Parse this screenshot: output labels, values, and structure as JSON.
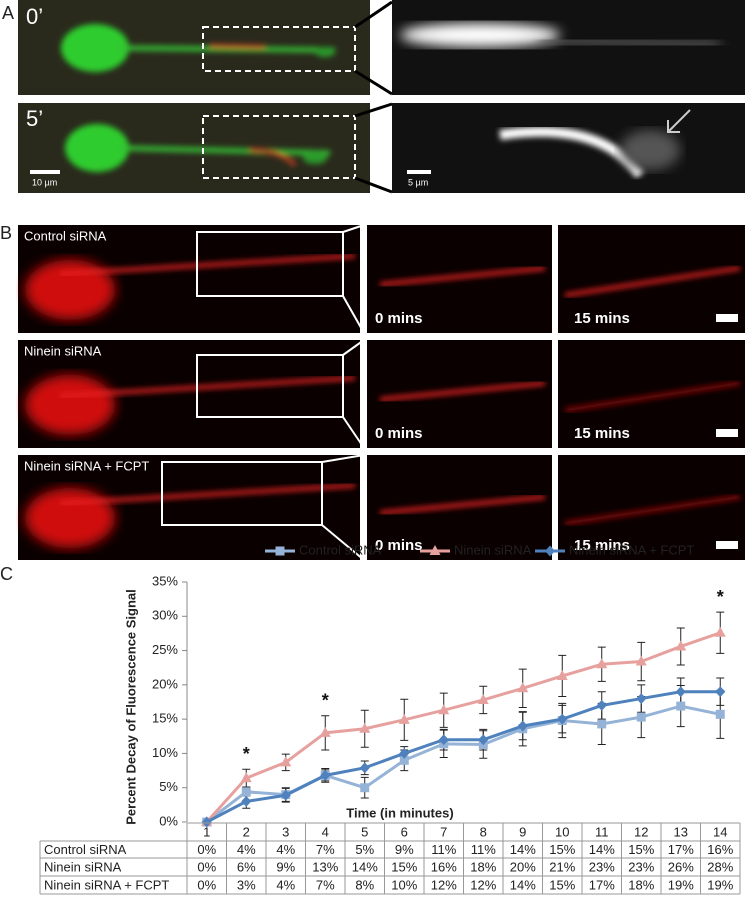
{
  "panel_labels": [
    "A",
    "B",
    "C"
  ],
  "panel_a": {
    "time_labels": [
      "0’",
      "5’"
    ],
    "scale_bars": [
      "10 µm",
      "5 µm"
    ]
  },
  "panel_b": {
    "rows": [
      "Control siRNA",
      "Ninein siRNA",
      "Ninein siRNA + FCPT"
    ],
    "time_labels": [
      "0 mins",
      "15 mins"
    ]
  },
  "chart_data": {
    "type": "line",
    "xlabel": "Time (in minutes)",
    "ylabel": "Percent Decay of Fluorescence Signal",
    "x": [
      1,
      2,
      3,
      4,
      5,
      6,
      7,
      8,
      9,
      10,
      11,
      12,
      13,
      14
    ],
    "ylim": [
      0,
      35
    ],
    "yticks": [
      {
        "value": 0,
        "label": "0%"
      },
      {
        "value": 5,
        "label": "5%"
      },
      {
        "value": 10,
        "label": "10%"
      },
      {
        "value": 15,
        "label": "15%"
      },
      {
        "value": 20,
        "label": "20%"
      },
      {
        "value": 25,
        "label": "25%"
      },
      {
        "value": 30,
        "label": "30%"
      },
      {
        "value": 35,
        "label": "35%"
      }
    ],
    "series": [
      {
        "name": "Control siRNA",
        "color": "#95b3d7",
        "marker": "square",
        "values": [
          0,
          4.4,
          4,
          6.8,
          5,
          9,
          11.4,
          11.3,
          13.6,
          14.8,
          14.3,
          15.3,
          16.9,
          15.7
        ],
        "errors": [
          0,
          0.6,
          1,
          0.8,
          1.5,
          1.5,
          2,
          2,
          2.5,
          2.5,
          3,
          3,
          3,
          3.5
        ],
        "value_labels": [
          "0%",
          "4%",
          "4%",
          "7%",
          "5%",
          "9%",
          "11%",
          "11%",
          "14%",
          "15%",
          "14%",
          "15%",
          "17%",
          "16%"
        ]
      },
      {
        "name": "Ninein siRNA",
        "color": "#e6a19f",
        "marker": "triangle",
        "values": [
          0,
          6.4,
          8.7,
          13,
          13.6,
          14.9,
          16.3,
          17.8,
          19.5,
          21.3,
          23,
          23.4,
          25.6,
          27.6
        ],
        "errors": [
          0,
          1.3,
          1.2,
          2.5,
          2.7,
          3,
          2.5,
          2,
          2.8,
          3,
          2.5,
          2.8,
          2.7,
          3
        ],
        "value_labels": [
          "0%",
          "6%",
          "9%",
          "13%",
          "14%",
          "15%",
          "16%",
          "18%",
          "20%",
          "21%",
          "23%",
          "23%",
          "26%",
          "28%"
        ]
      },
      {
        "name": "Ninein siRNA + FCPT",
        "color": "#4f81bd",
        "marker": "diamond",
        "values": [
          0,
          3,
          3.9,
          6.8,
          7.9,
          10,
          12,
          12,
          14,
          15,
          17,
          18,
          19,
          19
        ],
        "errors": [
          0,
          1,
          1,
          1,
          1,
          1,
          1.5,
          1.5,
          2,
          2,
          2,
          2,
          2,
          2
        ],
        "value_labels": [
          "0%",
          "3%",
          "4%",
          "7%",
          "8%",
          "10%",
          "12%",
          "12%",
          "14%",
          "15%",
          "17%",
          "18%",
          "19%",
          "19%"
        ]
      }
    ],
    "annotations": [
      {
        "x": 2,
        "text": "*"
      },
      {
        "x": 4,
        "text": "*"
      },
      {
        "x": 14,
        "text": "*"
      }
    ]
  }
}
